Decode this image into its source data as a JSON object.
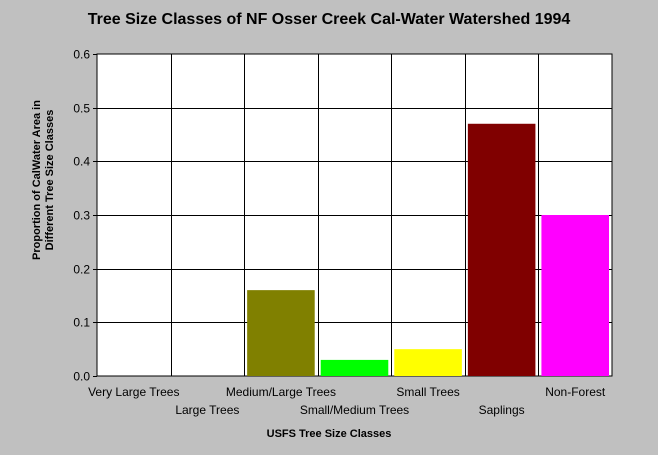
{
  "chart_data": {
    "type": "bar",
    "title": "Tree Size Classes of NF Osser Creek Cal-Water Watershed 1994",
    "xlabel": "USFS Tree Size Classes",
    "ylabel": "Proportion of CalWater Area in Different Tree Size Classes",
    "ylabel_lines": [
      "Proportion of CalWater Area in",
      "Different Tree Size Classes"
    ],
    "categories": [
      "Very Large Trees",
      "Large Trees",
      "Medium/Large Trees",
      "Small/Medium Trees",
      "Small Trees",
      "Saplings",
      "Non-Forest"
    ],
    "values": [
      0,
      0,
      0.16,
      0.03,
      0.05,
      0.47,
      0.3
    ],
    "colors": [
      "#000000",
      "#000000",
      "#808000",
      "#00ff00",
      "#ffff00",
      "#800000",
      "#ff00ff"
    ],
    "ylim": [
      0,
      0.6
    ],
    "yticks": [
      "0.0",
      "0.1",
      "0.2",
      "0.3",
      "0.4",
      "0.5",
      "0.6"
    ],
    "grid": true
  }
}
